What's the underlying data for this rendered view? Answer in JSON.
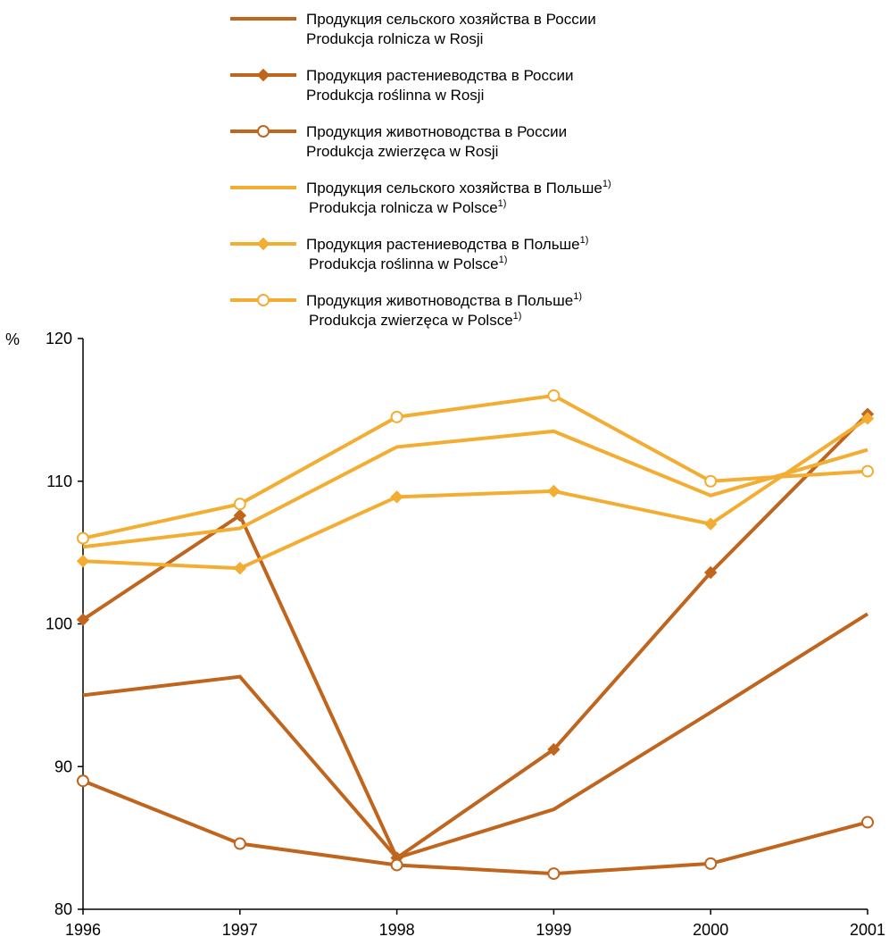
{
  "chart_data": {
    "type": "line",
    "title": "",
    "xlabel": "",
    "ylabel": "%",
    "x": [
      "1996",
      "1997",
      "1998",
      "1999",
      "2000",
      "2001"
    ],
    "ylim": [
      80,
      120
    ],
    "yticks": [
      "80",
      "90",
      "100",
      "110",
      "120"
    ],
    "grid": false,
    "legend_position": "top",
    "series": [
      {
        "id": "ru-agri",
        "name_line1": "Продукция сельского хозяйства в России",
        "name_line2": "Produkcja rolnicza w Rosji",
        "footnote": "",
        "color": "#c0651e",
        "marker": "none",
        "values": [
          95.0,
          96.3,
          83.6,
          87.0,
          93.8,
          100.7
        ]
      },
      {
        "id": "ru-crop",
        "name_line1": "Продукция растениеводства  в России",
        "name_line2": "Produkcja roślinna w Rosji",
        "footnote": "",
        "color": "#c0651e",
        "marker": "diamond",
        "values": [
          100.3,
          107.6,
          83.6,
          91.2,
          103.6,
          114.7
        ]
      },
      {
        "id": "ru-animal",
        "name_line1": "Продукция животноводства в России",
        "name_line2": "Produkcja zwierzęca w Rosji",
        "footnote": "",
        "color": "#c0651e",
        "marker": "circle",
        "values": [
          89.0,
          84.6,
          83.1,
          82.5,
          83.2,
          86.1
        ]
      },
      {
        "id": "pl-agri",
        "name_line1": "Продукция сельского хозяйства в Польше",
        "name_line2": "Produkcja rolnicza w Polsce",
        "footnote": "1)",
        "color": "#f2ad32",
        "marker": "none",
        "values": [
          105.4,
          106.7,
          112.4,
          113.5,
          109.0,
          112.2
        ]
      },
      {
        "id": "pl-crop",
        "name_line1": "Продукция растениеводства в Польше",
        "name_line2": "Produkcja roślinna w Polsce",
        "footnote": "1)",
        "color": "#f2ad32",
        "marker": "diamond",
        "values": [
          104.4,
          103.9,
          108.9,
          109.3,
          107.0,
          114.4
        ]
      },
      {
        "id": "pl-animal",
        "name_line1": "Продукция животноводства в Польше",
        "name_line2": "Produkcja zwierzęca w Polsce",
        "footnote": "1)",
        "color": "#f2ad32",
        "marker": "circle",
        "values": [
          106.0,
          108.4,
          114.5,
          116.0,
          110.0,
          110.7
        ]
      }
    ]
  }
}
